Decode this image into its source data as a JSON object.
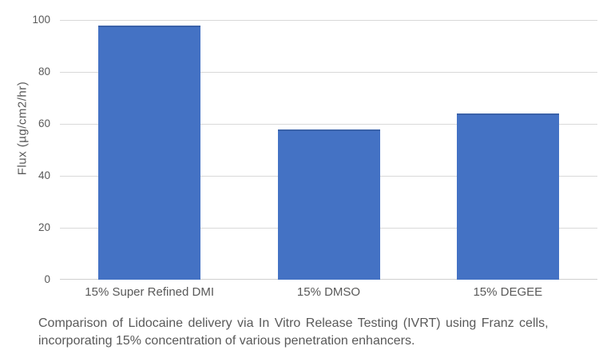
{
  "colors": {
    "bar_fill": "#4472C4",
    "bar_edge": "#3A62A9",
    "gridline": "#D9D9D9",
    "axis_text": "#595959",
    "caption_text": "#595959",
    "background": "#FFFFFF"
  },
  "chart_data": {
    "type": "bar",
    "categories": [
      "15% Super Refined DMI",
      "15% DMSO",
      "15% DEGEE"
    ],
    "values": [
      98,
      58,
      64
    ],
    "title": "",
    "xlabel": "",
    "ylabel": "Flux (µg/cm2/hr)",
    "ylim": [
      0,
      100
    ],
    "yticks": [
      0,
      20,
      40,
      60,
      80,
      100
    ],
    "grid": true,
    "legend": false
  },
  "caption": {
    "line1": "Comparison of Lidocaine delivery via In Vitro Release Testing (IVRT) using Franz cells,",
    "line2": "incorporating 15% concentration of various penetration enhancers."
  }
}
